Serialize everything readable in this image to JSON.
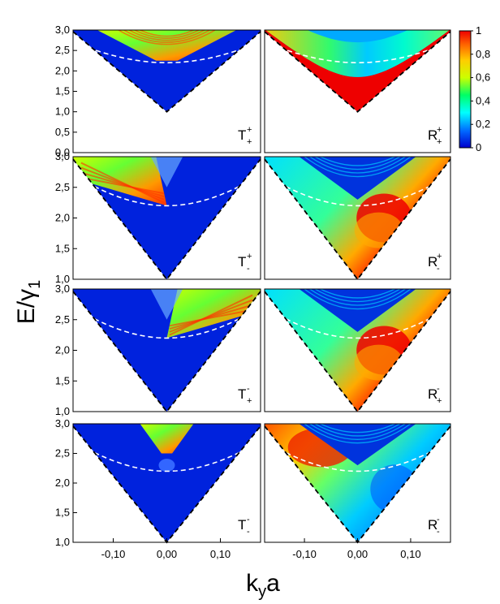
{
  "chart_data": {
    "type": "heatmap",
    "xlabel": {
      "main": "k",
      "sub": "y",
      "tail": "a"
    },
    "ylabel": {
      "main": "E/γ",
      "sub": "1"
    },
    "xticks": [
      "-0,10",
      "0,00",
      "0,10"
    ],
    "xtick_values": [
      -0.1,
      0.0,
      0.1
    ],
    "xlim": [
      -0.175,
      0.175
    ],
    "colorbar": {
      "ticks": [
        "1",
        "0,8",
        "0,6",
        "0,4",
        "0,2",
        "0"
      ],
      "tick_values": [
        1,
        0.8,
        0.6,
        0.4,
        0.2,
        0
      ],
      "range": [
        0,
        1
      ],
      "colors": [
        "#0000cc",
        "#0066ff",
        "#00ffff",
        "#00ff66",
        "#ccff00",
        "#ffcc00",
        "#ff6600",
        "#ee0000"
      ]
    },
    "rows": [
      {
        "yticks": [
          "3,0",
          "2,5",
          "2,0",
          "1,5",
          "1,0",
          "0,5",
          "0,0"
        ],
        "tick_values": [
          3.0,
          2.5,
          2.0,
          1.5,
          1.0,
          0.5,
          0.0
        ],
        "ylim": [
          0.0,
          3.0
        ],
        "panels": [
          {
            "label": "T",
            "sup": "+",
            "sub": "+",
            "style": "T_pp"
          },
          {
            "label": "R",
            "sup": "+",
            "sub": "+",
            "style": "R_pp"
          }
        ]
      },
      {
        "yticks": [
          "3,0",
          "2,5",
          "2,0",
          "1,5",
          "1,0"
        ],
        "tick_values": [
          3.0,
          2.5,
          2.0,
          1.5,
          1.0
        ],
        "ylim": [
          1.0,
          3.0
        ],
        "panels": [
          {
            "label": "T",
            "sup": "+",
            "sub": "-",
            "style": "T_pm"
          },
          {
            "label": "R",
            "sup": "+",
            "sub": "-",
            "style": "R_pm"
          }
        ]
      },
      {
        "yticks": [
          "3,0",
          "2,5",
          "2,0",
          "1,5",
          "1,0"
        ],
        "tick_values": [
          3.0,
          2.5,
          2.0,
          1.5,
          1.0
        ],
        "ylim": [
          1.0,
          3.0
        ],
        "panels": [
          {
            "label": "T",
            "sup": "-",
            "sub": "+",
            "style": "T_mp"
          },
          {
            "label": "R",
            "sup": "-",
            "sub": "+",
            "style": "R_mp"
          }
        ]
      },
      {
        "yticks": [
          "3,0",
          "2,5",
          "2,0",
          "1,5",
          "1,0"
        ],
        "tick_values": [
          3.0,
          2.5,
          2.0,
          1.5,
          1.0
        ],
        "ylim": [
          1.0,
          3.0
        ],
        "panels": [
          {
            "label": "T",
            "sup": "-",
            "sub": "-",
            "style": "T_mm"
          },
          {
            "label": "R",
            "sup": "-",
            "sub": "-",
            "style": "R_mm"
          }
        ]
      }
    ]
  }
}
